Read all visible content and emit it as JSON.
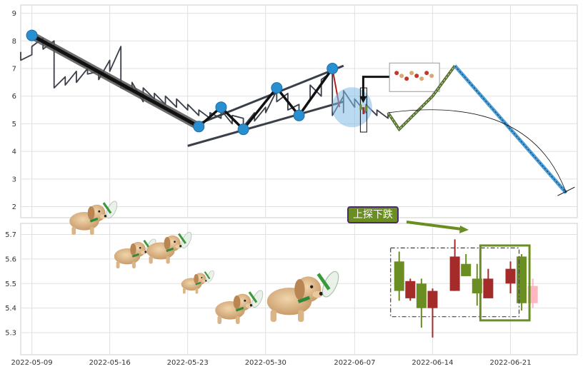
{
  "chart_data": [
    {
      "type": "line",
      "x_start": "2022-05-08",
      "x_end": "2022-06-27",
      "ylim": [
        1.6,
        9.3
      ],
      "yticks": [
        2,
        3,
        4,
        5,
        6,
        7,
        8,
        9
      ],
      "grid": true,
      "series": [
        {
          "values": [
            [
              "2022-05-08",
              7.6
            ],
            [
              "2022-05-08",
              7.3
            ],
            [
              "2022-05-09",
              7.5
            ],
            [
              "2022-05-09",
              7.8
            ],
            [
              "2022-05-10",
              8.1
            ],
            [
              "2022-05-10",
              7.7
            ],
            [
              "2022-05-11",
              8.0
            ],
            [
              "2022-05-11",
              7.4
            ],
            [
              "2022-05-11",
              6.3
            ],
            [
              "2022-05-12",
              6.7
            ],
            [
              "2022-05-12",
              6.4
            ],
            [
              "2022-05-13",
              6.9
            ],
            [
              "2022-05-13",
              6.5
            ],
            [
              "2022-05-14",
              7.0
            ],
            [
              "2022-05-14",
              6.8
            ],
            [
              "2022-05-15",
              6.9
            ],
            [
              "2022-05-15",
              6.6
            ],
            [
              "2022-05-16",
              7.3
            ],
            [
              "2022-05-16",
              6.9
            ],
            [
              "2022-05-17",
              7.8
            ],
            [
              "2022-05-17",
              6.8
            ],
            [
              "2022-05-17",
              6.3
            ],
            [
              "2022-05-18",
              6.2
            ],
            [
              "2022-05-18",
              6.5
            ],
            [
              "2022-05-19",
              5.8
            ],
            [
              "2022-05-19",
              6.3
            ],
            [
              "2022-05-20",
              5.9
            ],
            [
              "2022-05-20",
              6.1
            ],
            [
              "2022-05-21",
              5.7
            ],
            [
              "2022-05-21",
              6.0
            ],
            [
              "2022-05-22",
              5.6
            ],
            [
              "2022-05-22",
              5.9
            ],
            [
              "2022-05-23",
              5.5
            ],
            [
              "2022-05-23",
              5.7
            ],
            [
              "2022-05-24",
              5.3
            ],
            [
              "2022-05-24",
              5.5
            ],
            [
              "2022-05-25",
              5.2
            ],
            [
              "2022-05-25",
              5.4
            ],
            [
              "2022-05-26",
              5.2
            ],
            [
              "2022-05-26",
              5.5
            ],
            [
              "2022-05-27",
              5.0
            ],
            [
              "2022-05-27",
              5.3
            ],
            [
              "2022-05-28",
              5.2
            ],
            [
              "2022-05-28",
              4.9
            ],
            [
              "2022-05-29",
              5.4
            ],
            [
              "2022-05-29",
              5.1
            ],
            [
              "2022-05-30",
              5.6
            ],
            [
              "2022-05-30",
              5.4
            ],
            [
              "2022-05-31",
              6.2
            ],
            [
              "2022-05-31",
              5.8
            ],
            [
              "2022-06-01",
              6.1
            ],
            [
              "2022-06-01",
              5.5
            ],
            [
              "2022-06-02",
              5.7
            ],
            [
              "2022-06-02",
              5.3
            ],
            [
              "2022-06-03",
              5.9
            ],
            [
              "2022-06-03",
              6.4
            ],
            [
              "2022-06-04",
              6.0
            ],
            [
              "2022-06-04",
              6.6
            ],
            [
              "2022-06-05",
              6.9
            ],
            [
              "2022-06-05",
              5.3
            ],
            [
              "2022-06-06",
              6.0
            ],
            [
              "2022-06-06",
              5.4
            ],
            [
              "2022-06-06",
              6.2
            ],
            [
              "2022-06-07",
              5.6
            ],
            [
              "2022-06-07",
              5.9
            ],
            [
              "2022-06-08",
              5.4
            ],
            [
              "2022-06-08",
              5.7
            ],
            [
              "2022-06-09",
              5.3
            ],
            [
              "2022-06-09",
              5.5
            ],
            [
              "2022-06-10",
              5.2
            ],
            [
              "2022-06-10",
              5.4
            ]
          ]
        }
      ],
      "markers": [
        [
          "2022-05-09",
          8.2
        ],
        [
          "2022-05-24",
          4.9
        ],
        [
          "2022-05-26",
          5.6
        ],
        [
          "2022-05-28",
          4.8
        ],
        [
          "2022-05-31",
          6.3
        ],
        [
          "2022-06-02",
          5.3
        ],
        [
          "2022-06-05",
          7.0
        ]
      ],
      "channel": {
        "upper": [
          [
            "2022-05-24",
            5.0
          ],
          [
            "2022-06-06",
            7.1
          ]
        ],
        "lower": [
          [
            "2022-05-23",
            4.2
          ],
          [
            "2022-06-06",
            5.8
          ]
        ]
      },
      "projection": [
        [
          "2022-06-10",
          5.4
        ],
        [
          "2022-06-11",
          4.8
        ],
        [
          "2022-06-14",
          6.0
        ],
        [
          "2022-06-16",
          7.1
        ],
        [
          "2022-06-26",
          2.5
        ]
      ],
      "forecast_arc": [
        [
          "2022-06-10",
          5.4
        ],
        [
          "2022-06-17",
          5.3
        ],
        [
          "2022-06-26",
          2.5
        ]
      ]
    },
    {
      "type": "candlestick",
      "ylim": [
        5.21,
        5.745
      ],
      "yticks": [
        5.3,
        5.4,
        5.5,
        5.6,
        5.7
      ],
      "x_ticks": [
        "2022-05-09",
        "2022-05-16",
        "2022-05-23",
        "2022-05-30",
        "2022-06-07",
        "2022-06-14",
        "2022-06-21"
      ],
      "grid": true,
      "candles": [
        {
          "x": "2022-06-11",
          "open": 5.47,
          "close": 5.59,
          "high": 5.63,
          "low": 5.43
        },
        {
          "x": "2022-06-12",
          "open": 5.51,
          "close": 5.44,
          "high": 5.52,
          "low": 5.43
        },
        {
          "x": "2022-06-13",
          "open": 5.4,
          "close": 5.5,
          "high": 5.52,
          "low": 5.32
        },
        {
          "x": "2022-06-14",
          "open": 5.47,
          "close": 5.4,
          "high": 5.48,
          "low": 5.28
        },
        {
          "x": "2022-06-16",
          "open": 5.61,
          "close": 5.47,
          "high": 5.68,
          "low": 5.47
        },
        {
          "x": "2022-06-17",
          "open": 5.53,
          "close": 5.58,
          "high": 5.62,
          "low": 5.53
        },
        {
          "x": "2022-06-18",
          "open": 5.46,
          "close": 5.52,
          "high": 5.58,
          "low": 5.41
        },
        {
          "x": "2022-06-19",
          "open": 5.52,
          "close": 5.44,
          "high": 5.56,
          "low": 5.44
        },
        {
          "x": "2022-06-21",
          "open": 5.56,
          "close": 5.5,
          "high": 5.59,
          "low": 5.46
        },
        {
          "x": "2022-06-22",
          "open": 5.42,
          "close": 5.61,
          "high": 5.62,
          "low": 5.39
        },
        {
          "x": "2022-06-23",
          "open": 5.49,
          "close": 5.42,
          "high": 5.52,
          "low": 5.4
        }
      ],
      "annotation": "上探下跌",
      "colors": {
        "up": "#6b8e23",
        "down": "#a52a2a",
        "faded": "#ffb6c1",
        "label_bg": "#6b8e23",
        "label_border": "#4b2c6b"
      }
    }
  ]
}
